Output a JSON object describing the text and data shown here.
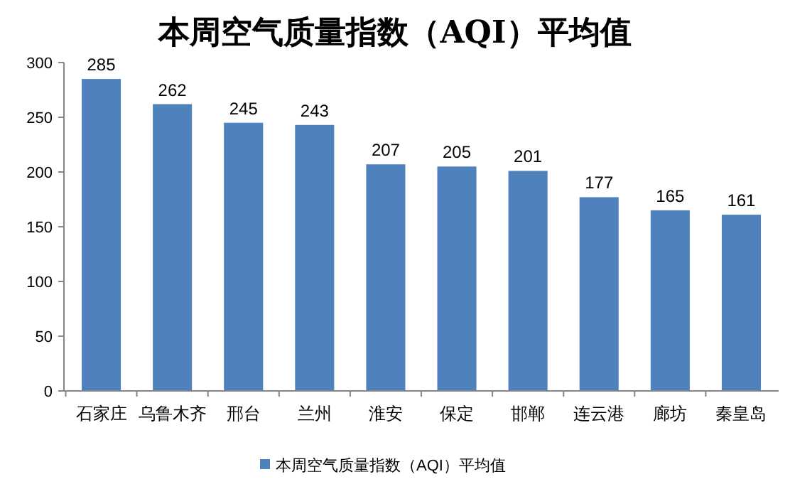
{
  "chart_data": {
    "type": "bar",
    "title": "本周空气质量指数（AQI）平均值",
    "categories": [
      "石家庄",
      "乌鲁木齐",
      "邢台",
      "兰州",
      "淮安",
      "保定",
      "邯郸",
      "连云港",
      "廊坊",
      "秦皇岛"
    ],
    "series": [
      {
        "name": "本周空气质量指数（AQI）平均值",
        "color": "#4f81bd",
        "values": [
          285,
          262,
          245,
          243,
          207,
          205,
          201,
          177,
          165,
          161
        ]
      }
    ],
    "ylim": [
      0,
      300
    ],
    "yticks": [
      0,
      50,
      100,
      150,
      200,
      250,
      300
    ],
    "data_labels": true,
    "legend": "bottom"
  }
}
